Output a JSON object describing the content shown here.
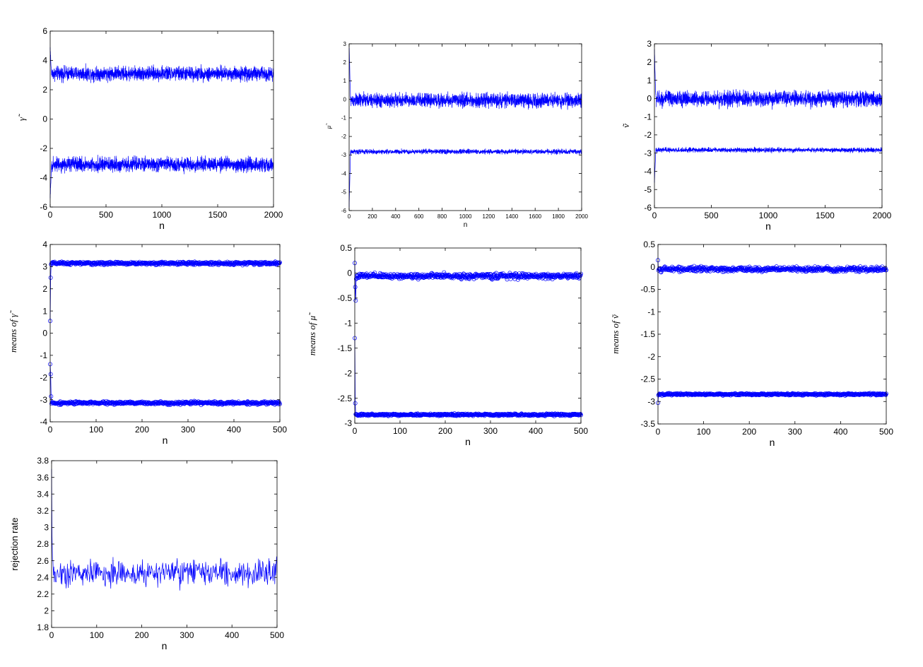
{
  "colors": {
    "series": "#0000ff",
    "axis": "#000000",
    "background": "#ffffff"
  },
  "chart_data": [
    {
      "id": "trace-gamma",
      "type": "line",
      "title": "",
      "xlabel": "n",
      "ylabel": "γ̃",
      "xlim": [
        0,
        2000
      ],
      "ylim": [
        -6,
        6
      ],
      "xticks": [
        "0",
        "500",
        "1000",
        "1500",
        "2000"
      ],
      "yticks": [
        "-6",
        "-4",
        "-2",
        "0",
        "2",
        "4",
        "6"
      ],
      "grid": false,
      "marker": "none",
      "n_points": 2000,
      "series": [
        {
          "start": 4.8,
          "level": 3.1,
          "spread": 0.45
        },
        {
          "start": -5.3,
          "level": -3.1,
          "spread": 0.45
        }
      ]
    },
    {
      "id": "trace-mu",
      "type": "line",
      "title": "",
      "xlabel": "n",
      "ylabel": "μ̃",
      "xlim": [
        0,
        2000
      ],
      "ylim": [
        -6,
        3
      ],
      "xticks": [
        "0",
        "200",
        "400",
        "600",
        "800",
        "1000",
        "1200",
        "1400",
        "1600",
        "1800",
        "2000"
      ],
      "yticks": [
        "-6",
        "-5",
        "-4",
        "-3",
        "-2",
        "-1",
        "0",
        "1",
        "2",
        "3"
      ],
      "grid": false,
      "marker": "none",
      "n_points": 2000,
      "series": [
        {
          "start": 2.9,
          "level": -0.05,
          "spread": 0.35
        },
        {
          "start": -5.8,
          "level": -2.82,
          "spread": 0.12
        }
      ]
    },
    {
      "id": "trace-v",
      "type": "line",
      "title": "",
      "xlabel": "n",
      "ylabel": "ṽ",
      "xlim": [
        0,
        2000
      ],
      "ylim": [
        -6,
        3
      ],
      "xticks": [
        "0",
        "500",
        "1000",
        "1500",
        "2000"
      ],
      "yticks": [
        "-6",
        "-5",
        "-4",
        "-3",
        "-2",
        "-1",
        "0",
        "1",
        "2",
        "3"
      ],
      "grid": false,
      "marker": "none",
      "n_points": 2000,
      "series": [
        {
          "start": 2.7,
          "level": -0.02,
          "spread": 0.4
        },
        {
          "start": -4.6,
          "level": -2.83,
          "spread": 0.12
        }
      ]
    },
    {
      "id": "means-gamma",
      "type": "line",
      "title": "",
      "xlabel": "n",
      "ylabel": "means of γ̃",
      "xlim": [
        0,
        500
      ],
      "ylim": [
        -4,
        4
      ],
      "xticks": [
        "0",
        "100",
        "200",
        "300",
        "400",
        "500"
      ],
      "yticks": [
        "-4",
        "-3",
        "-2",
        "-1",
        "0",
        "1",
        "2",
        "3",
        "4"
      ],
      "grid": false,
      "marker": "circle",
      "n_points": 500,
      "series": [
        {
          "start_values": [
            0.55,
            2.5,
            3.1
          ],
          "level": 3.15,
          "spread": 0.06
        },
        {
          "start_values": [
            -1.4,
            -1.85,
            -2.85
          ],
          "level": -3.15,
          "spread": 0.06
        }
      ]
    },
    {
      "id": "means-mu",
      "type": "line",
      "title": "",
      "xlabel": "n",
      "ylabel": "means of μ̃",
      "xlim": [
        0,
        500
      ],
      "ylim": [
        -3,
        0.5
      ],
      "xticks": [
        "0",
        "100",
        "200",
        "300",
        "400",
        "500"
      ],
      "yticks": [
        "-3",
        "-2.5",
        "-2",
        "-1.5",
        "-1",
        "-0.5",
        "0",
        "0.5"
      ],
      "grid": false,
      "marker": "circle",
      "n_points": 500,
      "series": [
        {
          "start_values": [
            0.2,
            -0.28,
            -0.55,
            -0.12
          ],
          "level": -0.06,
          "spread": 0.05
        },
        {
          "start_values": [
            -1.3,
            -2.6,
            -2.82
          ],
          "level": -2.83,
          "spread": 0.02
        }
      ]
    },
    {
      "id": "means-v",
      "type": "line",
      "title": "",
      "xlabel": "n",
      "ylabel": "means of ṽ",
      "xlim": [
        0,
        500
      ],
      "ylim": [
        -3.5,
        0.5
      ],
      "xticks": [
        "0",
        "100",
        "200",
        "300",
        "400",
        "500"
      ],
      "yticks": [
        "-3.5",
        "-3",
        "-2.5",
        "-2",
        "-1.5",
        "-1",
        "-0.5",
        "0",
        "0.5"
      ],
      "grid": false,
      "marker": "circle",
      "n_points": 500,
      "series": [
        {
          "start_values": [
            0.15,
            -0.08,
            -0.05
          ],
          "level": -0.05,
          "spread": 0.05
        },
        {
          "start_values": [
            -3.03,
            -2.86,
            -2.84
          ],
          "level": -2.84,
          "spread": 0.02
        }
      ]
    },
    {
      "id": "rejection-rate",
      "type": "line",
      "title": "",
      "xlabel": "n",
      "ylabel": "rejection rate",
      "xlim": [
        0,
        500
      ],
      "ylim": [
        1.8,
        3.8
      ],
      "xticks": [
        "0",
        "100",
        "200",
        "300",
        "400",
        "500"
      ],
      "yticks": [
        "1.8",
        "2",
        "2.2",
        "2.4",
        "2.6",
        "2.8",
        "3",
        "3.2",
        "3.4",
        "3.6",
        "3.8"
      ],
      "grid": false,
      "marker": "none",
      "n_points": 500,
      "series": [
        {
          "start_values": [
            3.7,
            2.9,
            2.6
          ],
          "level": 2.45,
          "spread": 0.15
        }
      ]
    }
  ]
}
